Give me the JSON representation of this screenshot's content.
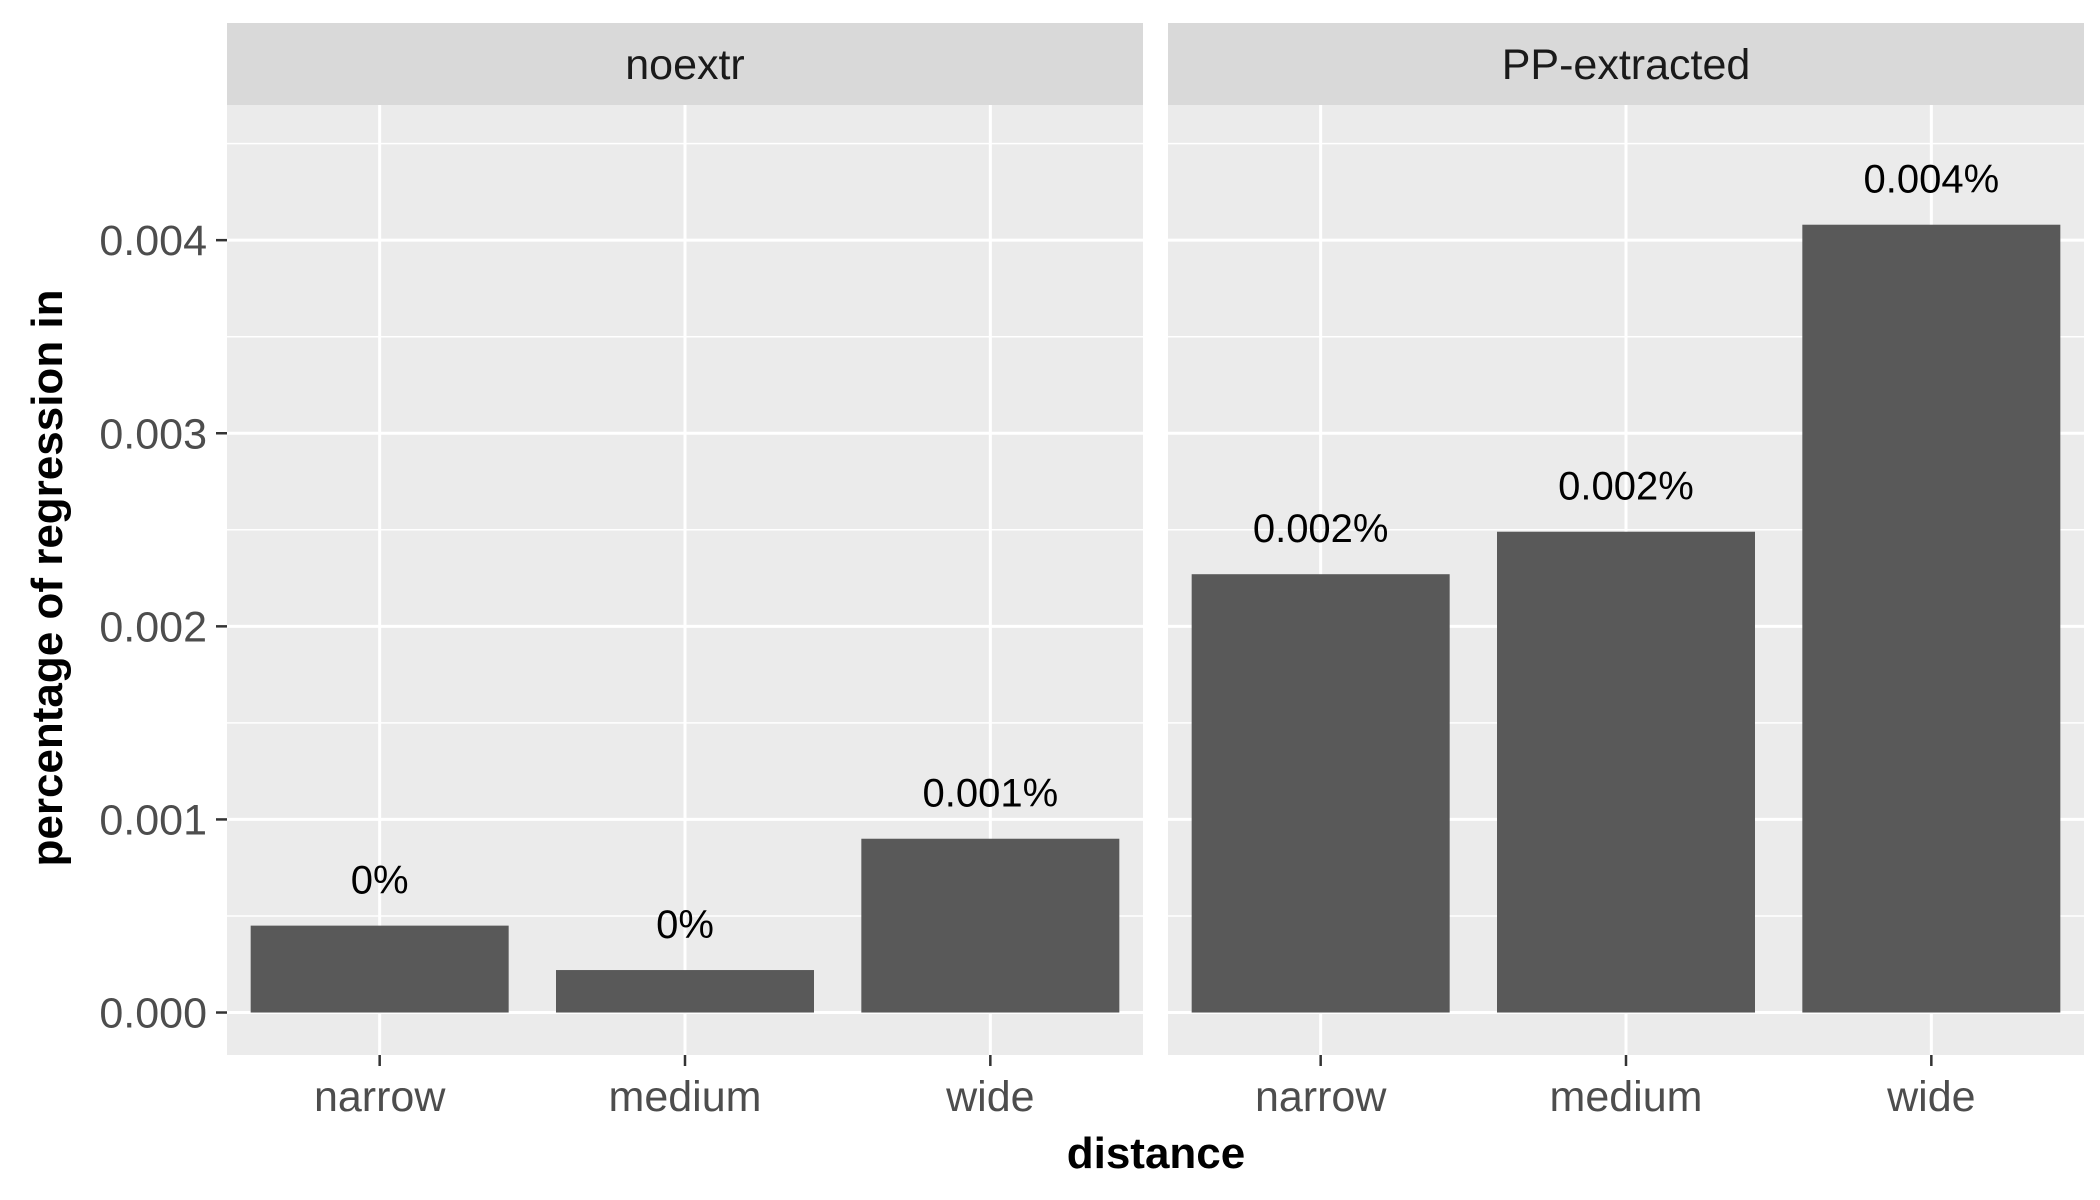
{
  "chart_data": {
    "type": "bar",
    "facet_by": "extraction",
    "categories": [
      "narrow",
      "medium",
      "wide"
    ],
    "panels": [
      {
        "name": "noextr",
        "values": [
          0.00045,
          0.00022,
          0.0009
        ],
        "labels": [
          "0%",
          "0%",
          "0.001%"
        ]
      },
      {
        "name": "PP-extracted",
        "values": [
          0.00227,
          0.00249,
          0.00408
        ],
        "labels": [
          "0.002%",
          "0.002%",
          "0.004%"
        ]
      }
    ],
    "xlabel": "distance",
    "ylabel": "percentage of regression in",
    "ylim": [
      -0.00022,
      0.0047
    ],
    "yticks": [
      "0.000",
      "0.001",
      "0.002",
      "0.003",
      "0.004"
    ],
    "grid": true,
    "colors": {
      "bar": "#595959",
      "panel": "#ebebeb",
      "strip": "#d9d9d9",
      "grid": "#ffffff"
    }
  }
}
